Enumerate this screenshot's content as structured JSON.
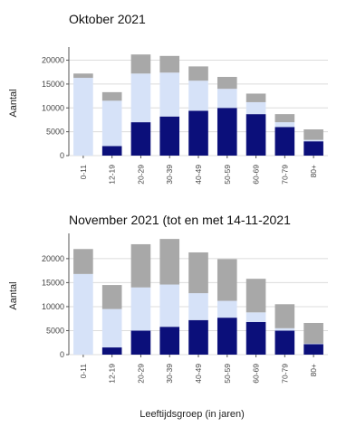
{
  "colors": {
    "bottom": "#0b0f7a",
    "middle": "#d6e2f8",
    "top": "#a8a8a8",
    "grid": "#dcdcdc"
  },
  "xlabel": "Leeftijdsgroep (in jaren)",
  "chart_data": [
    {
      "type": "bar",
      "stacked": true,
      "title": "Oktober 2021",
      "ylabel": "Aantal",
      "ylim": [
        0,
        22000
      ],
      "yticks": [
        0,
        5000,
        10000,
        15000,
        20000
      ],
      "categories": [
        "0-11",
        "12-19",
        "20-29",
        "30-39",
        "40-49",
        "50-59",
        "60-69",
        "70-79",
        "80+"
      ],
      "series": [
        {
          "values": [
            0,
            2000,
            7000,
            8200,
            9400,
            10000,
            8700,
            6000,
            3000
          ]
        },
        {
          "values": [
            16300,
            9500,
            10200,
            9200,
            6300,
            4000,
            2500,
            1000,
            300
          ]
        },
        {
          "values": [
            900,
            1800,
            4000,
            3500,
            3000,
            2500,
            1800,
            1700,
            2200
          ]
        }
      ]
    },
    {
      "type": "bar",
      "stacked": true,
      "title": "November 2021 (tot en met 14-11-2021",
      "ylabel": "Aantal",
      "ylim": [
        0,
        24500
      ],
      "yticks": [
        0,
        5000,
        10000,
        15000,
        20000
      ],
      "categories": [
        "0-11",
        "12-19",
        "20-29",
        "30-39",
        "40-49",
        "50-59",
        "60-69",
        "70-79",
        "80+"
      ],
      "series": [
        {
          "values": [
            0,
            1500,
            5000,
            5800,
            7200,
            7700,
            6800,
            5000,
            2200
          ]
        },
        {
          "values": [
            16800,
            8000,
            9000,
            8800,
            5600,
            3500,
            2000,
            500,
            100
          ]
        },
        {
          "values": [
            5200,
            5000,
            9000,
            9500,
            8500,
            8700,
            7000,
            5000,
            4300
          ]
        }
      ]
    }
  ]
}
